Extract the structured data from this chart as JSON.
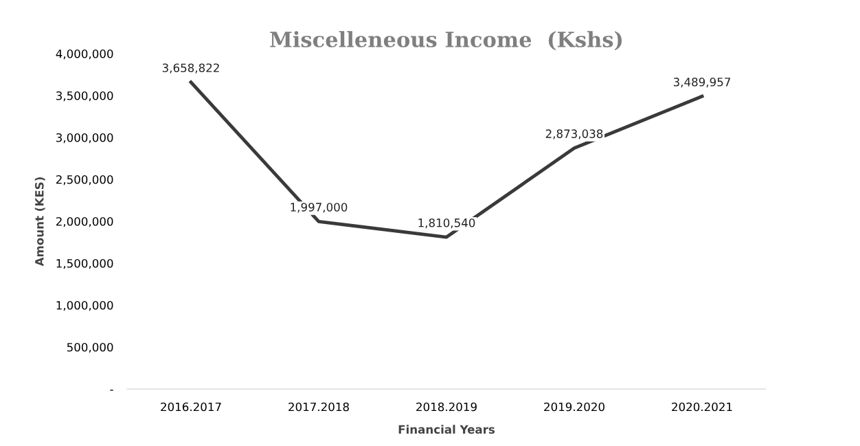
{
  "chart_data": {
    "type": "line",
    "title": "Miscelleneous Income  (Kshs)",
    "xlabel": "Financial Years",
    "ylabel": "Amount (KES)",
    "categories": [
      "2016.2017",
      "2017.2018",
      "2018.2019",
      "2019.2020",
      "2020.2021"
    ],
    "series": [
      {
        "color": "#3a3a3a",
        "values": [
          3658822,
          1997000,
          1810540,
          2873038,
          3489957
        ],
        "value_labels": [
          "3,658,822",
          "1,997,000",
          "1,810,540",
          "2,873,038",
          "3,489,957"
        ]
      }
    ],
    "ylim": [
      0,
      4000000
    ],
    "yticks": [
      {
        "value": 0,
        "label": "-"
      },
      {
        "value": 500000,
        "label": "500,000"
      },
      {
        "value": 1000000,
        "label": "1,000,000"
      },
      {
        "value": 1500000,
        "label": "1,500,000"
      },
      {
        "value": 2000000,
        "label": "2,000,000"
      },
      {
        "value": 2500000,
        "label": "2,500,000"
      },
      {
        "value": 3000000,
        "label": "3,000,000"
      },
      {
        "value": 3500000,
        "label": "3,500,000"
      },
      {
        "value": 4000000,
        "label": "4,000,000"
      }
    ],
    "grid": false,
    "legend": false,
    "marker": "none",
    "line_style": "solid"
  }
}
